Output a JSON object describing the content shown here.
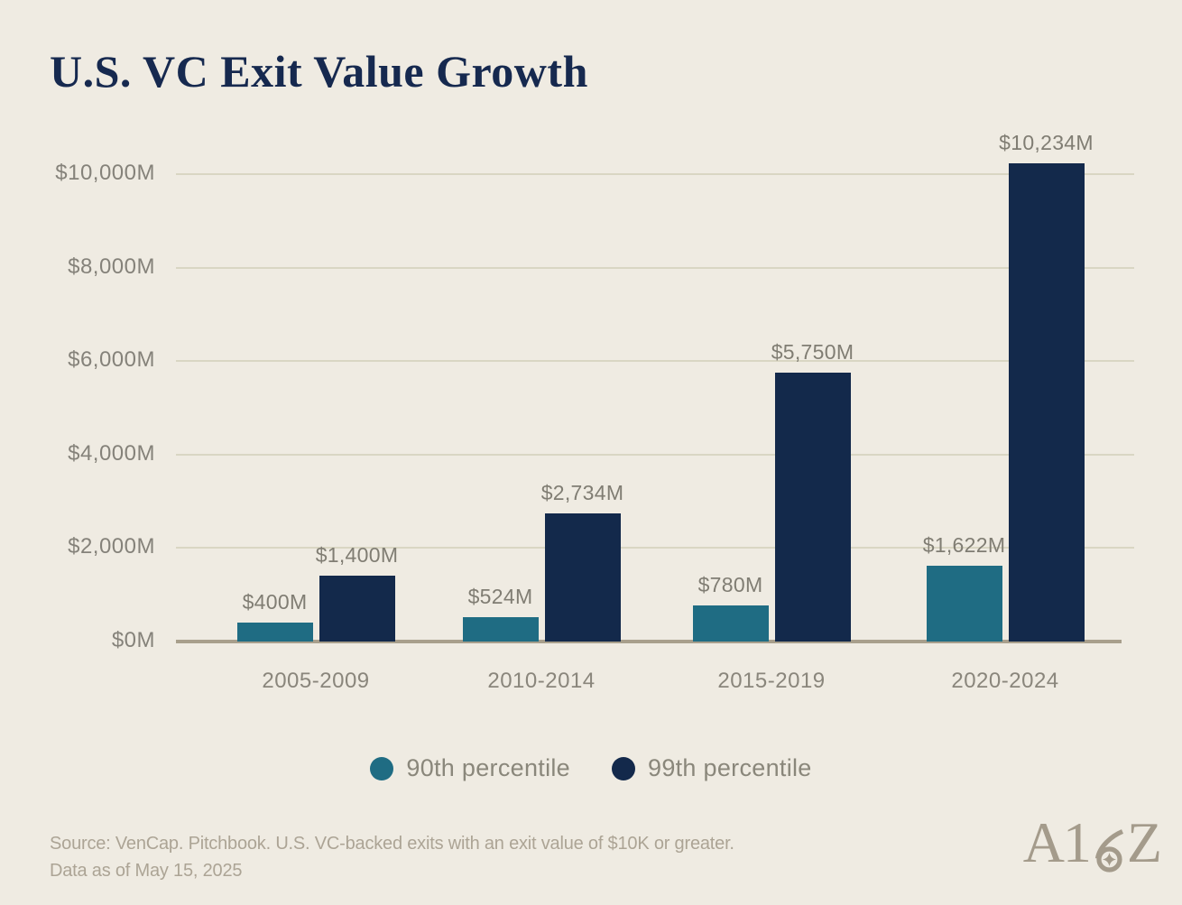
{
  "title": "U.S. VC Exit Value Growth",
  "chart_data": {
    "type": "bar",
    "categories": [
      "2005-2009",
      "2010-2014",
      "2015-2019",
      "2020-2024"
    ],
    "series": [
      {
        "name": "90th percentile",
        "color": "#1F6C83",
        "values": [
          400,
          524,
          780,
          1622
        ],
        "labels": [
          "$400M",
          "$524M",
          "$780M",
          "$1,622M"
        ]
      },
      {
        "name": "99th percentile",
        "color": "#13294B",
        "values": [
          1400,
          2734,
          5750,
          10234
        ],
        "labels": [
          "$1,400M",
          "$2,734M",
          "$5,750M",
          "$10,234M"
        ]
      }
    ],
    "title": "U.S. VC Exit Value Growth",
    "xlabel": "",
    "ylabel": "",
    "ylim": [
      0,
      10000
    ],
    "yticks": [
      {
        "value": 0,
        "label": "$0M"
      },
      {
        "value": 2000,
        "label": "$2,000M"
      },
      {
        "value": 4000,
        "label": "$4,000M"
      },
      {
        "value": 6000,
        "label": "$6,000M"
      },
      {
        "value": 8000,
        "label": "$8,000M"
      },
      {
        "value": 10000,
        "label": "$10,000M"
      }
    ],
    "grid": "horizontal",
    "legend_position": "bottom"
  },
  "footer": {
    "source_line1": "Source: VenCap. Pitchbook. U.S. VC-backed exits with an exit value of $10K or greater.",
    "source_line2": "Data as of May 15, 2025"
  },
  "logo": {
    "text": "A16Z",
    "prefix": "A1",
    "suffix": "Z"
  },
  "colors": {
    "background": "#EFEBE2",
    "title_text": "#16294F",
    "teal": "#1F6C83",
    "navy": "#13294B",
    "gridline": "#D9D6C3",
    "axis_line": "#A89F8C",
    "tick_text": "#85827A",
    "value_text": "#807D73",
    "legend_text": "#8A877B",
    "source_text": "#ACA495",
    "logo": "#A49B8B"
  }
}
